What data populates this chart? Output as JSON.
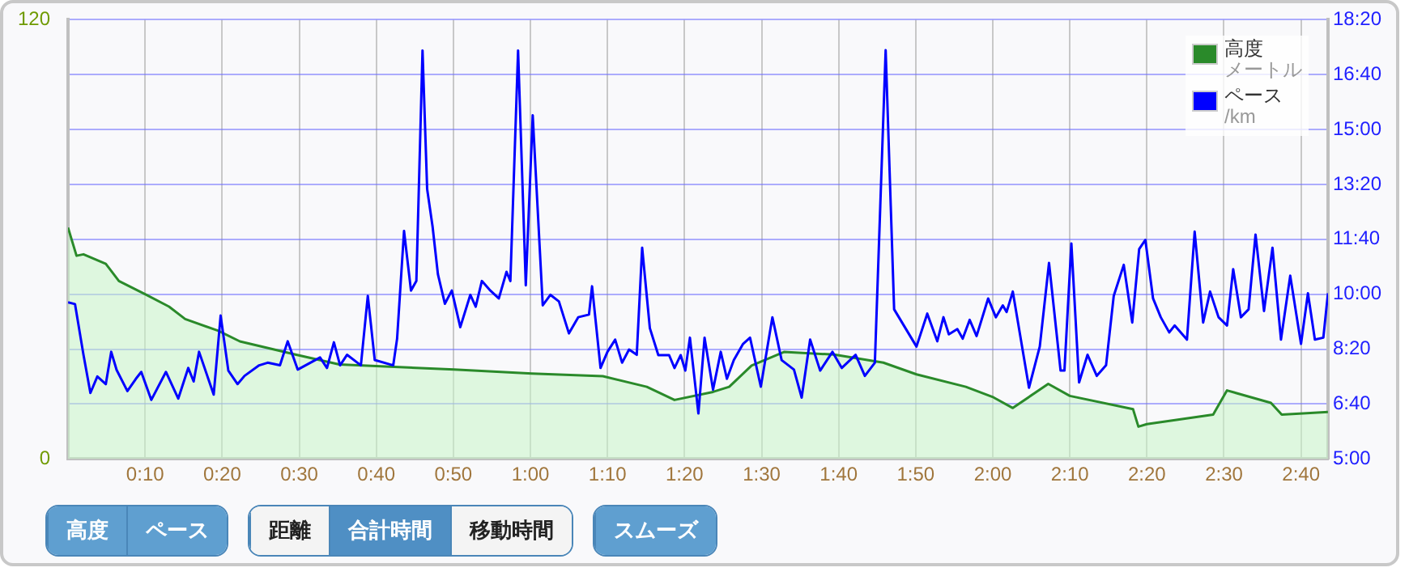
{
  "chart_data": {
    "type": "area",
    "xlim": [
      0,
      163.5
    ],
    "ylim": [
      0,
      120
    ],
    "yticks": [
      0,
      120
    ],
    "y2lim": [
      5,
      18.333
    ],
    "xticks": [
      {
        "value": 10,
        "label": "0:10"
      },
      {
        "value": 20,
        "label": "0:20"
      },
      {
        "value": 30,
        "label": "0:30"
      },
      {
        "value": 40,
        "label": "0:40"
      },
      {
        "value": 50,
        "label": "0:50"
      },
      {
        "value": 60,
        "label": "1:00"
      },
      {
        "value": 70,
        "label": "1:10"
      },
      {
        "value": 80,
        "label": "1:20"
      },
      {
        "value": 90,
        "label": "1:30"
      },
      {
        "value": 100,
        "label": "1:40"
      },
      {
        "value": 110,
        "label": "1:50"
      },
      {
        "value": 120,
        "label": "2:00"
      },
      {
        "value": 130,
        "label": "2:10"
      },
      {
        "value": 140,
        "label": "2:20"
      },
      {
        "value": 150,
        "label": "2:30"
      },
      {
        "value": 160,
        "label": "2:40"
      }
    ],
    "y2ticks": [
      {
        "value": 5,
        "label": "5:00"
      },
      {
        "value": 6.667,
        "label": "6:40"
      },
      {
        "value": 8.333,
        "label": "8:20"
      },
      {
        "value": 10,
        "label": "10:00"
      },
      {
        "value": 11.667,
        "label": "11:40"
      },
      {
        "value": 13.333,
        "label": "13:20"
      },
      {
        "value": 15,
        "label": "15:00"
      },
      {
        "value": 16.667,
        "label": "16:40"
      },
      {
        "value": 18.333,
        "label": "18:20"
      }
    ],
    "grid": true,
    "legend": "top right",
    "series": [
      {
        "name": "高度",
        "type": "area",
        "color": "#2a8a2a",
        "x": [
          0,
          1.1,
          2.0,
          4.9,
          6.6,
          10.2,
          13.1,
          15.2,
          19.5,
          22.3,
          29.5,
          35.2,
          50.1,
          60.2,
          69.4,
          75.1,
          78.7,
          83.7,
          85.8,
          88.7,
          92.9,
          99.4,
          105.8,
          110.1,
          116.5,
          120.1,
          122.6,
          127.2,
          130.0,
          138.2,
          138.9,
          140.0,
          148.6,
          150.4,
          156.1,
          157.5,
          163.5
        ],
        "values": [
          63.2,
          55.5,
          55.9,
          53.3,
          48.6,
          44.8,
          41.6,
          38.2,
          35.0,
          32.1,
          28.5,
          25.8,
          24.4,
          23.3,
          22.6,
          19.7,
          16.1,
          18.3,
          19.7,
          25.5,
          29.2,
          28.5,
          26.3,
          23.1,
          19.7,
          16.8,
          13.9,
          20.5,
          17.2,
          13.6,
          8.8,
          9.5,
          12.1,
          18.7,
          15.3,
          12.1,
          12.8
        ]
      },
      {
        "name": "ペース",
        "type": "line",
        "axis": "y2",
        "color": "#0000ff",
        "x": [
          0,
          0.9,
          2.0,
          2.9,
          3.8,
          4.9,
          5.6,
          6.3,
          7.7,
          8.8,
          9.5,
          10.8,
          12.7,
          14.3,
          15.6,
          16.3,
          17.0,
          18.9,
          19.8,
          20.8,
          22.0,
          22.9,
          24.8,
          25.9,
          27.5,
          28.5,
          29.8,
          32.7,
          33.6,
          34.5,
          35.3,
          36.2,
          38.0,
          38.9,
          39.8,
          42.2,
          42.7,
          43.6,
          44.5,
          45.2,
          46.0,
          46.6,
          47.3,
          48.0,
          48.9,
          49.8,
          50.9,
          52.2,
          52.9,
          53.7,
          54.8,
          55.9,
          56.9,
          57.4,
          58.4,
          59.4,
          60.3,
          61.6,
          62.6,
          63.7,
          65.0,
          66.2,
          67.6,
          68.0,
          69.1,
          70.0,
          71.0,
          71.9,
          72.8,
          73.8,
          74.5,
          75.5,
          76.6,
          78.0,
          78.7,
          79.5,
          80.1,
          80.7,
          81.8,
          82.6,
          83.7,
          84.7,
          85.5,
          86.4,
          87.6,
          88.5,
          89.9,
          91.4,
          92.6,
          94.2,
          95.2,
          96.3,
          97.6,
          99.2,
          100.4,
          102.2,
          103.4,
          104.7,
          106.1,
          107.2,
          110.1,
          111.5,
          112.8,
          113.6,
          114.3,
          115.4,
          116.1,
          117.0,
          117.9,
          119.4,
          120.4,
          121.3,
          121.8,
          122.6,
          124.7,
          126.1,
          127.3,
          128.8,
          129.3,
          130.2,
          131.2,
          132.3,
          133.5,
          134.7,
          135.7,
          137.0,
          138.1,
          139.0,
          139.8,
          140.8,
          141.8,
          142.9,
          143.6,
          145.2,
          146.2,
          147.3,
          148.2,
          149.3,
          150.4,
          151.2,
          152.2,
          153.2,
          154.1,
          155.2,
          156.3,
          157.4,
          158.6,
          160.0,
          160.9,
          161.8,
          162.9,
          163.5
        ],
        "values": [
          9.75,
          9.7,
          8.16,
          7.0,
          7.5,
          7.27,
          8.25,
          7.7,
          7.06,
          7.43,
          7.64,
          6.79,
          7.64,
          6.83,
          7.76,
          7.35,
          8.25,
          6.95,
          9.35,
          7.68,
          7.27,
          7.52,
          7.84,
          7.92,
          7.84,
          8.57,
          7.71,
          8.08,
          7.76,
          8.54,
          7.84,
          8.16,
          7.84,
          9.95,
          8.0,
          7.84,
          8.65,
          11.92,
          10.11,
          10.4,
          17.4,
          13.19,
          12.06,
          10.6,
          9.71,
          10.11,
          9.0,
          9.98,
          9.62,
          10.4,
          10.11,
          9.87,
          10.68,
          10.4,
          17.4,
          10.27,
          15.43,
          9.66,
          9.98,
          9.78,
          8.81,
          9.3,
          9.38,
          10.24,
          7.76,
          8.25,
          8.62,
          7.92,
          8.32,
          8.16,
          11.41,
          8.97,
          8.15,
          8.15,
          7.76,
          8.15,
          7.68,
          8.68,
          6.38,
          8.68,
          7.1,
          8.25,
          7.43,
          8.0,
          8.49,
          8.68,
          7.19,
          9.3,
          8.0,
          7.71,
          6.86,
          8.62,
          7.68,
          8.25,
          7.76,
          8.16,
          7.52,
          7.92,
          17.41,
          9.54,
          8.41,
          9.41,
          8.57,
          9.3,
          8.78,
          8.94,
          8.65,
          9.22,
          8.73,
          9.87,
          9.3,
          9.66,
          9.46,
          10.08,
          7.16,
          8.41,
          10.95,
          7.68,
          7.68,
          11.54,
          7.32,
          8.16,
          7.52,
          7.84,
          9.95,
          10.89,
          9.14,
          11.37,
          11.65,
          9.87,
          9.3,
          8.84,
          9.05,
          8.62,
          11.9,
          9.14,
          10.08,
          9.3,
          9.05,
          10.76,
          9.3,
          9.54,
          11.81,
          9.49,
          11.41,
          8.62,
          10.56,
          8.49,
          10.03,
          8.62,
          8.68,
          10.03
        ]
      }
    ],
    "annotations": [
      "メートル",
      "/km",
      "高度",
      "ペース",
      "距離",
      "合計時間",
      "移動時間",
      "スムーズ"
    ]
  }
}
